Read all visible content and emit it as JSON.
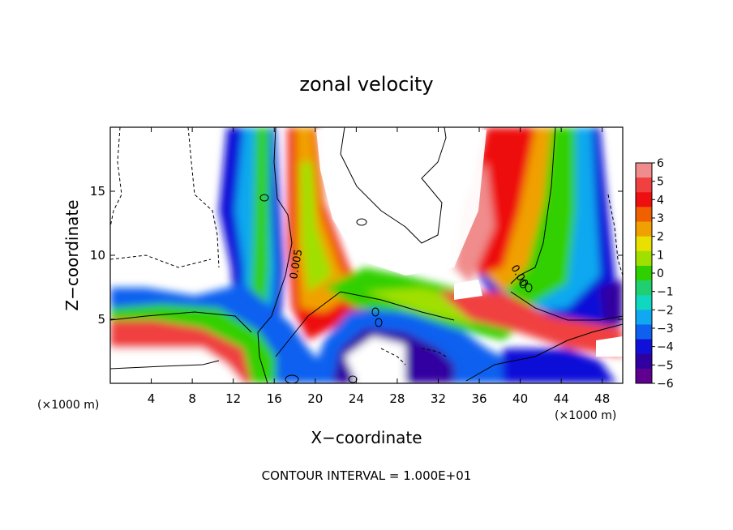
{
  "chart_data": {
    "type": "heatmap",
    "title": "zonal velocity",
    "xlabel": "X−coordinate",
    "ylabel": "Z−coordinate",
    "x_unit_left": "(×1000 m)",
    "x_unit_right": "(×1000 m)",
    "xlim": [
      0,
      50
    ],
    "ylim": [
      0,
      20
    ],
    "x_ticks": [
      4,
      8,
      12,
      16,
      20,
      24,
      28,
      32,
      36,
      40,
      44,
      48
    ],
    "y_ticks": [
      5,
      10,
      15
    ],
    "colorbar": {
      "ticks": [
        6,
        5,
        4,
        3,
        2,
        1,
        0,
        -1,
        -2,
        -3,
        -4,
        -5,
        -6
      ],
      "tick_labels": [
        "6",
        "5",
        "4",
        "3",
        "2",
        "1",
        "0",
        "−1",
        "−2",
        "−3",
        "−4",
        "−5",
        "−6"
      ],
      "colors": [
        "#f08c8c",
        "#f04040",
        "#ee1010",
        "#f06000",
        "#f0a000",
        "#e8e000",
        "#a0e000",
        "#30d000",
        "#20d070",
        "#10d8c0",
        "#10a8f0",
        "#1060f0",
        "#1010d8",
        "#3000a0",
        "#600090"
      ]
    },
    "contour_labels": [
      "0.005",
      "0.00"
    ],
    "footer": "CONTOUR INTERVAL = 1.000E+01",
    "grid": false,
    "legend": "right colorbar"
  }
}
